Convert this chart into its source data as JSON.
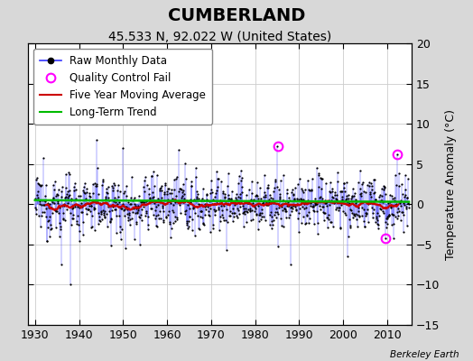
{
  "title": "CUMBERLAND",
  "subtitle": "45.533 N, 92.022 W (United States)",
  "ylabel": "Temperature Anomaly (°C)",
  "attribution": "Berkeley Earth",
  "xlim": [
    1928.5,
    2015.5
  ],
  "ylim": [
    -15,
    20
  ],
  "yticks": [
    -15,
    -10,
    -5,
    0,
    5,
    10,
    15,
    20
  ],
  "xticks": [
    1930,
    1940,
    1950,
    1960,
    1970,
    1980,
    1990,
    2000,
    2010
  ],
  "x_start": 1930,
  "x_end": 2015,
  "seed": 12345,
  "outer_bg": "#d8d8d8",
  "plot_bg": "#ffffff",
  "raw_line_color": "#3333ff",
  "raw_marker_color": "#000000",
  "ma_color": "#cc0000",
  "trend_color": "#00bb00",
  "qc_fail_color": "#ff00ff",
  "title_fontsize": 14,
  "subtitle_fontsize": 10,
  "legend_fontsize": 8.5,
  "tick_labelsize": 9
}
